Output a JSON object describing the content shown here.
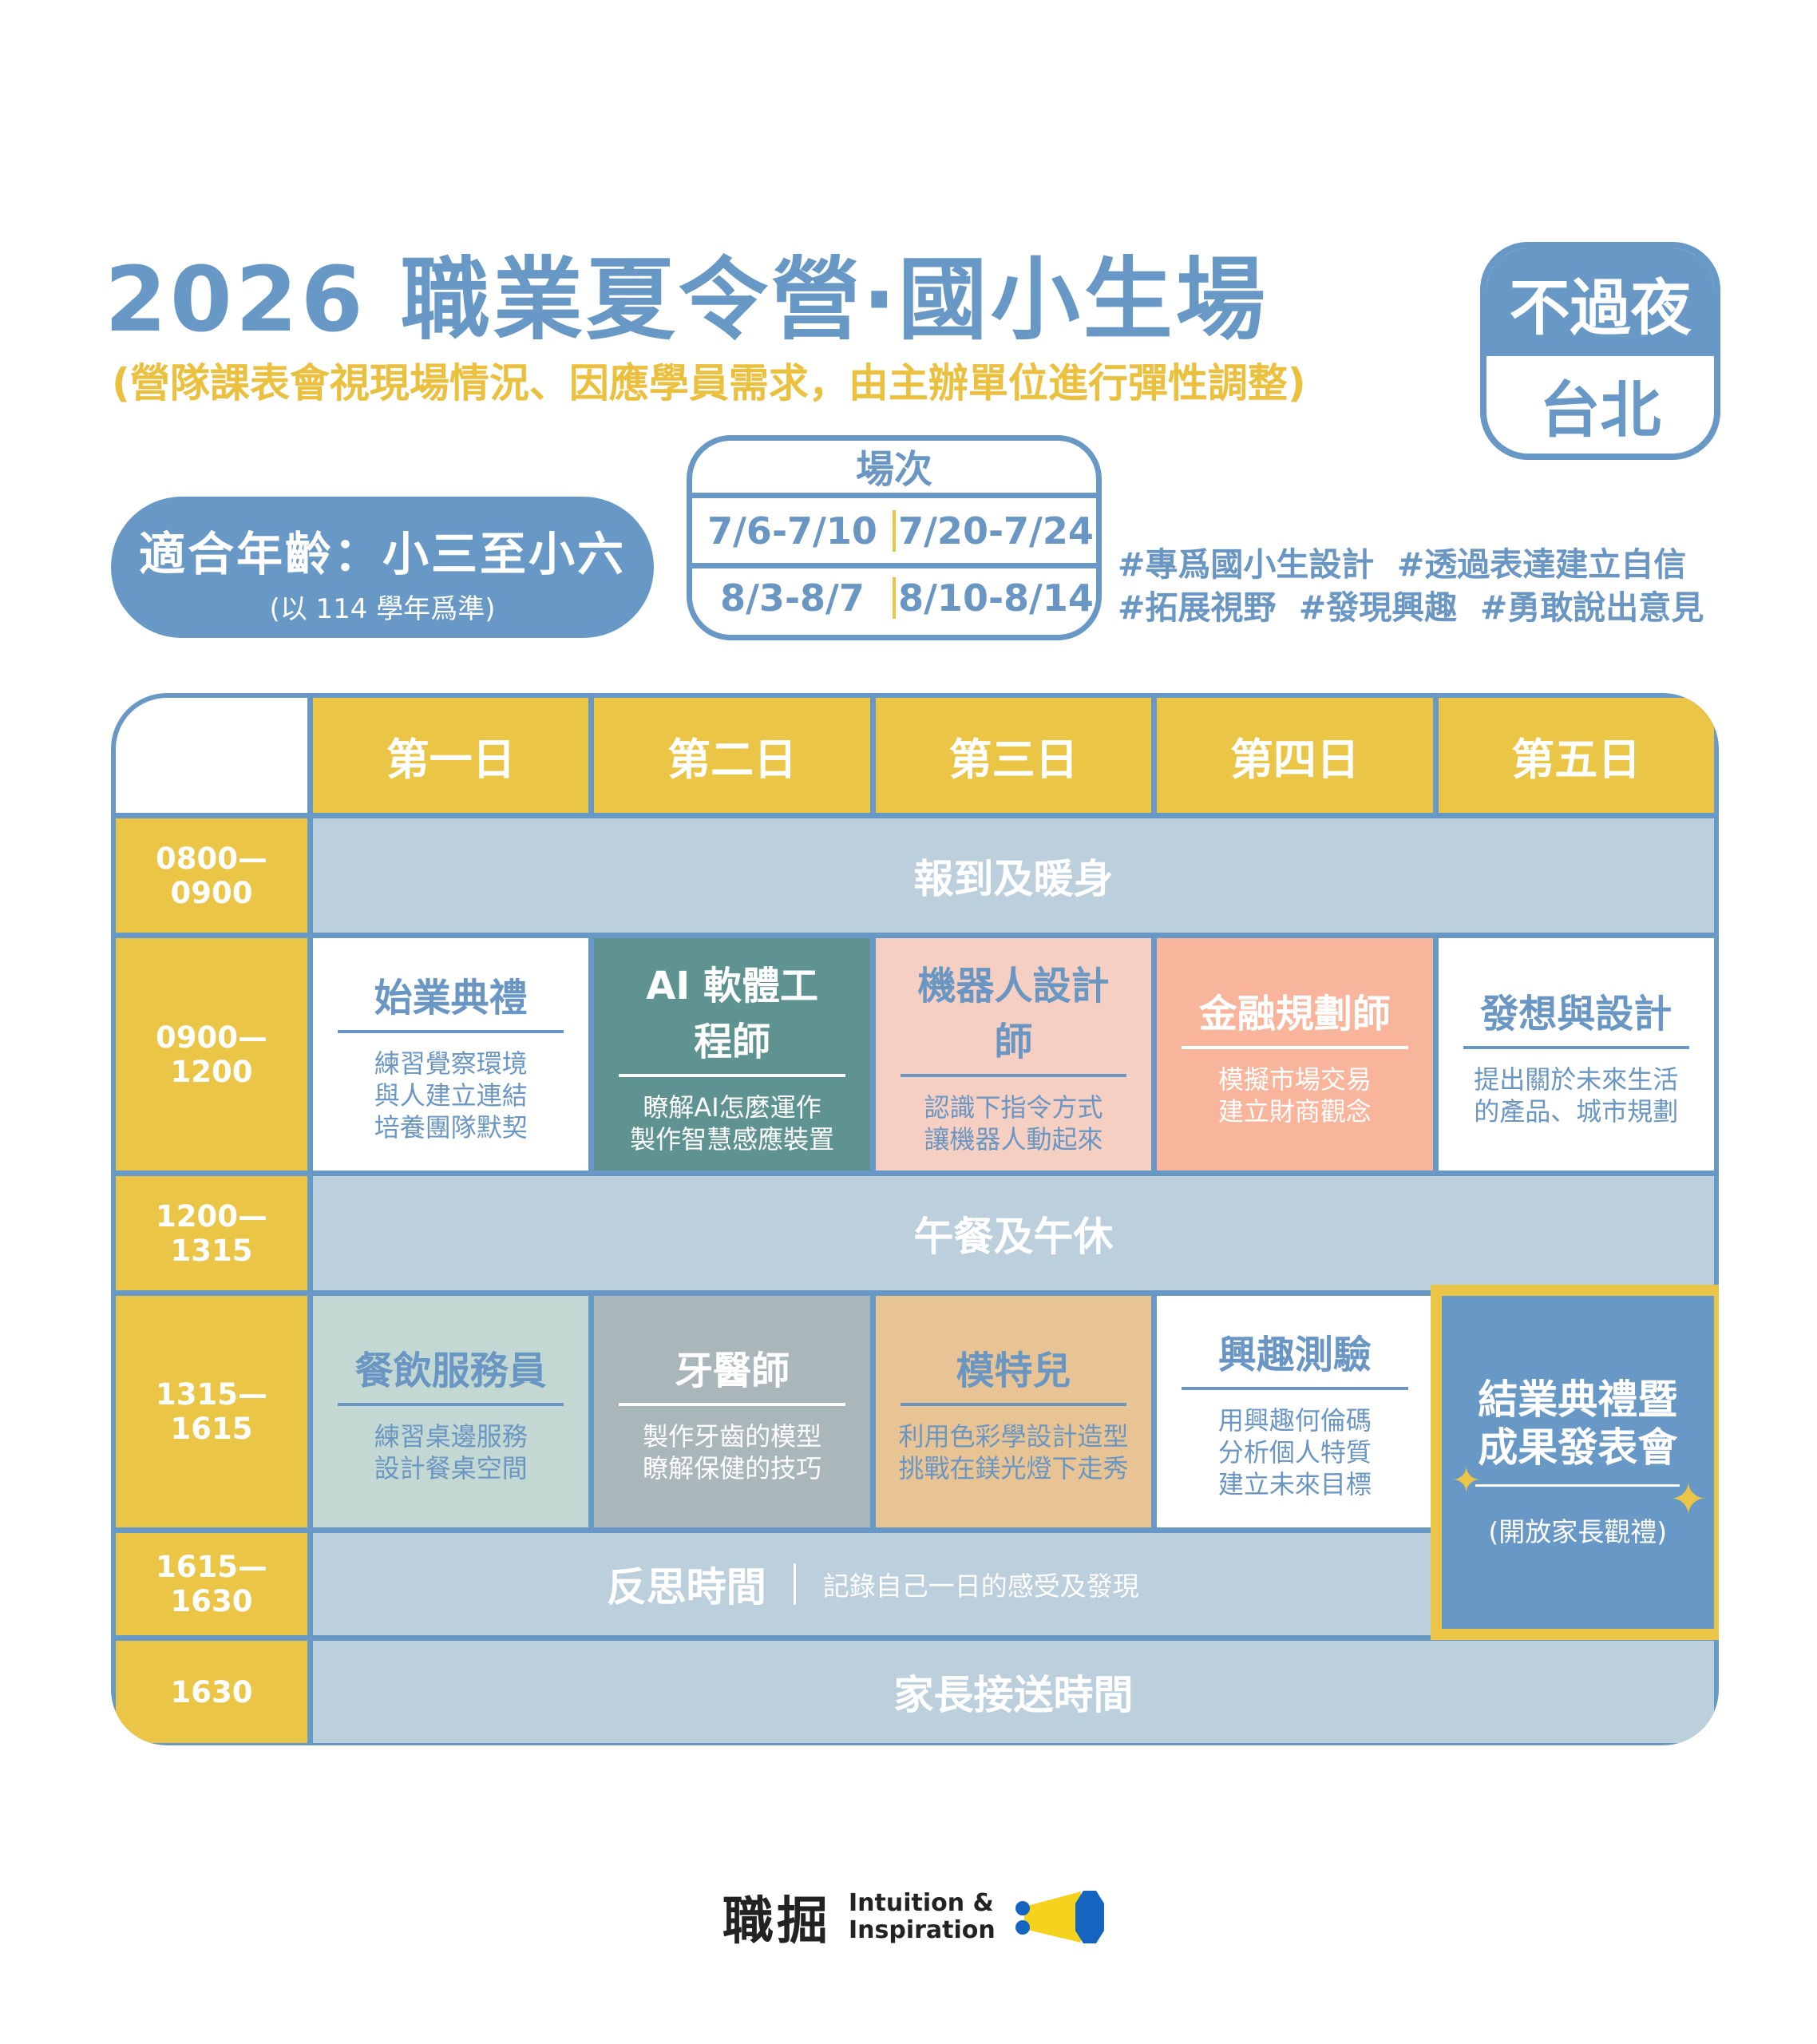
{
  "header": {
    "title": "2026 職業夏令營‧國小生場",
    "subtitle": "(營隊課表會視現場情況、因應學員需求，由主辦單位進行彈性調整)"
  },
  "badge": {
    "top": "不過夜",
    "bottom": "台北"
  },
  "age": {
    "label": "適合年齡：小三至小六",
    "note": "(以 114 學年爲準)"
  },
  "sessions": {
    "title": "場次",
    "dates": [
      "7/6-7/10",
      "7/20-7/24",
      "8/3-8/7",
      "8/10-8/14"
    ]
  },
  "tags": [
    "#專爲國小生設計",
    "#透過表達建立自信",
    "#拓展視野",
    "#發現興趣",
    "#勇敢說出意見"
  ],
  "table": {
    "days": [
      "第一日",
      "第二日",
      "第三日",
      "第四日",
      "第五日"
    ],
    "times": [
      "0800—0900",
      "0900—1200",
      "1200—1315",
      "1315—1615",
      "1615—1630",
      "1630"
    ],
    "checkin": "報到及暖身",
    "lunch": "午餐及午休",
    "pickup": "家長接送時間",
    "morning": [
      {
        "title": "始業典禮",
        "desc": [
          "練習覺察環境",
          "與人建立連結",
          "培養團隊默契"
        ],
        "bg": "#ffffff",
        "color": "#6a96c3"
      },
      {
        "title": "AI 軟體工程師",
        "desc": [
          "瞭解AI怎麼運作",
          "製作智慧感應裝置"
        ],
        "bg": "#5f9391",
        "color": "#ffffff"
      },
      {
        "title": "機器人設計師",
        "desc": [
          "認識下指令方式",
          "讓機器人動起來"
        ],
        "bg": "#f5cfc2",
        "color": "#6a96c3"
      },
      {
        "title": "金融規劃師",
        "desc": [
          "模擬市場交易",
          "建立財商觀念"
        ],
        "bg": "#f9b49c",
        "color": "#ffffff"
      },
      {
        "title": "發想與設計",
        "desc": [
          "提出關於未來生活",
          "的產品、城市規劃"
        ],
        "bg": "#ffffff",
        "color": "#6a96c3"
      }
    ],
    "afternoon": [
      {
        "title": "餐飲服務員",
        "desc": [
          "練習桌邊服務",
          "設計餐桌空間"
        ],
        "bg": "#c3d8d2",
        "color": "#6a96c3"
      },
      {
        "title": "牙醫師",
        "desc": [
          "製作牙齒的模型",
          "瞭解保健的技巧"
        ],
        "bg": "#a9b6ba",
        "color": "#ffffff"
      },
      {
        "title": "模特兒",
        "desc": [
          "利用色彩學設計造型",
          "挑戰在鎂光燈下走秀"
        ],
        "bg": "#e8c494",
        "color": "#6a96c3"
      },
      {
        "title": "興趣測驗",
        "desc": [
          "用興趣何倫碼",
          "分析個人特質",
          "建立未來目標"
        ],
        "bg": "#ffffff",
        "color": "#6a96c3"
      }
    ],
    "reflection": {
      "title": "反思時間",
      "desc": "記錄自己一日的感受及發現"
    },
    "closing": {
      "title": [
        "結業典禮暨",
        "成果發表會"
      ],
      "desc": "(開放家長觀禮)"
    }
  },
  "logo": {
    "zh": "職掘",
    "en1": "Intuition &",
    "en2": "Inspiration"
  },
  "colors": {
    "blue": "#6898c6",
    "yellow": "#ebc545",
    "lightblue": "#bccfdd"
  }
}
